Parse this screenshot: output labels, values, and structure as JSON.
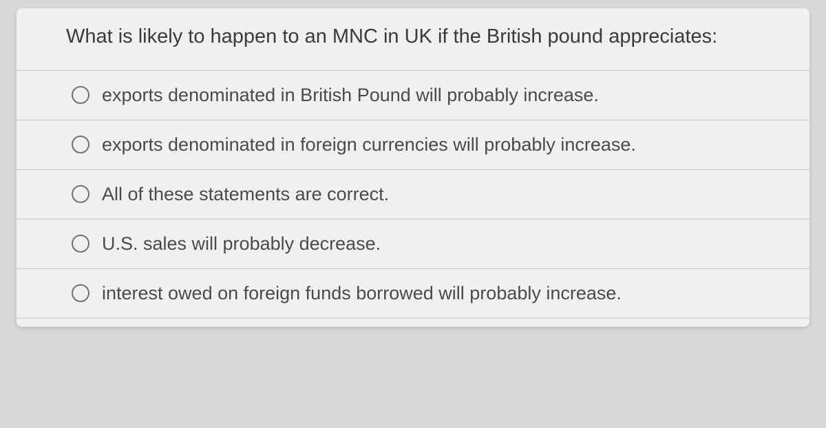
{
  "question": {
    "prompt": "What is likely to happen to an MNC in UK if the British pound appreciates:",
    "options": [
      {
        "label": "exports denominated in British Pound will probably increase."
      },
      {
        "label": "exports denominated in foreign currencies will probably increase."
      },
      {
        "label": "All of these statements are correct."
      },
      {
        "label": "U.S. sales will probably decrease."
      },
      {
        "label": "interest owed on foreign funds borrowed will probably increase."
      }
    ]
  },
  "colors": {
    "page_bg": "#d8d8d8",
    "card_bg": "#f0f0ef",
    "text": "#3a3a3a",
    "option_text": "#4a4a4a",
    "divider": "#c8c8c6",
    "radio_border": "#707070"
  }
}
